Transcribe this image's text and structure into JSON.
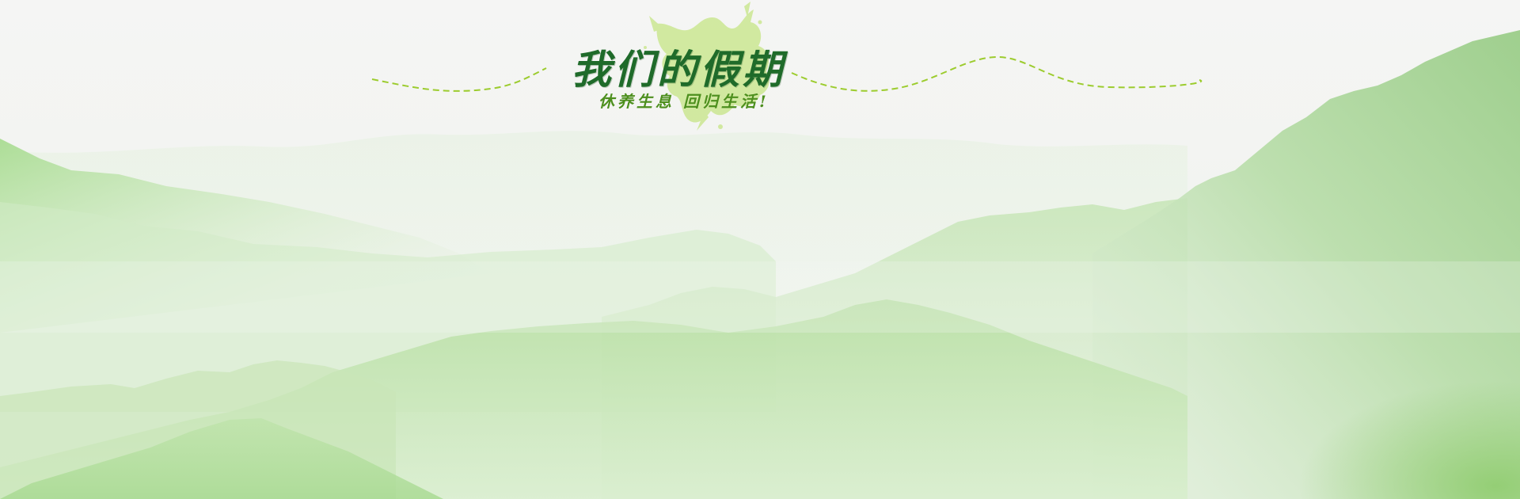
{
  "banner": {
    "title": "我们的假期",
    "subtitle": "休养生息 回归生活!"
  },
  "colors": {
    "background": "#f4f4f3",
    "title": "#1f6b2a",
    "subtitle": "#4d8f1e",
    "splash": "#cfe89a",
    "dashed_line": "#9ccc2e",
    "mountain_light": "#d9efcf",
    "mountain_mid": "#b9e0a6",
    "mountain_dark": "#8fca7a"
  },
  "icons": {
    "splash": "paint-splash-icon",
    "decorative_lines": "dashed-wave-line"
  }
}
